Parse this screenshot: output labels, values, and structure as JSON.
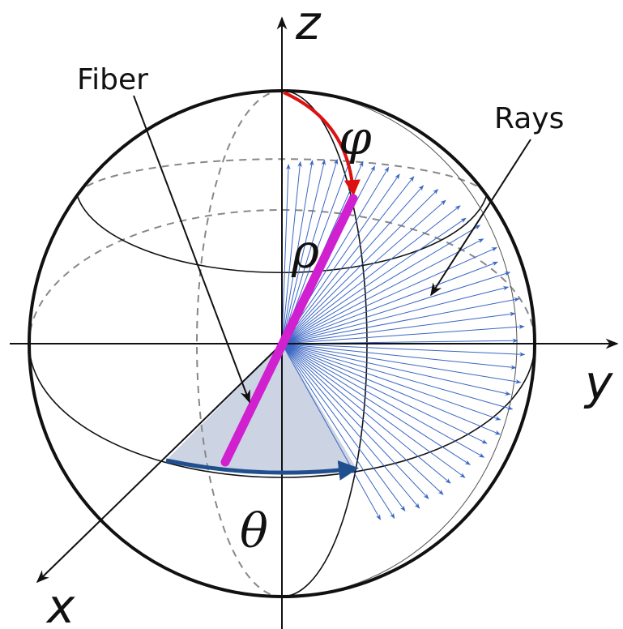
{
  "labels": {
    "z": "z",
    "y": "y",
    "x": "x",
    "fiber": "Fiber",
    "rays": "Rays",
    "phi": "φ",
    "rho": "ρ",
    "theta": "θ"
  }
}
